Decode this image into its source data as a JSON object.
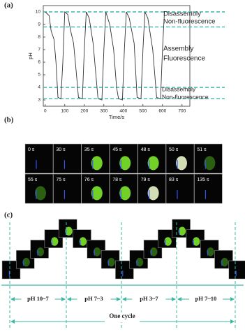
{
  "chart_data": {
    "type": "line",
    "panel_label": "(a)",
    "x_label": "Time/s",
    "y_label": "pH",
    "x": [
      0,
      20,
      30,
      45,
      55,
      65,
      80,
      90,
      100,
      115,
      130,
      145,
      160,
      170,
      190,
      200,
      210,
      225,
      245,
      270,
      290,
      300,
      310,
      330,
      350,
      365,
      375,
      395,
      405,
      415,
      430,
      455,
      470,
      490,
      500,
      510,
      525,
      550,
      570,
      590,
      600,
      610
    ],
    "series": [
      {
        "color": "#333333",
        "values": [
          10,
          9.7,
          8.5,
          7.8,
          6,
          3.2,
          3.1,
          6,
          10,
          9.8,
          8.5,
          7.5,
          5,
          3.2,
          3.1,
          7,
          10,
          9.5,
          7.5,
          3.1,
          3,
          7,
          10,
          9,
          7,
          4,
          3.1,
          3,
          7,
          10,
          9.5,
          7.5,
          3.2,
          3.1,
          7,
          10,
          9.5,
          7,
          3.2,
          3.1,
          7,
          10
        ]
      }
    ],
    "xlim": [
      -10,
      740
    ],
    "xticks": [
      0,
      100,
      200,
      300,
      400,
      500,
      600,
      700
    ],
    "ylim": [
      2.5,
      10.5
    ],
    "yticks": [
      3,
      4,
      5,
      6,
      7,
      8,
      9,
      10
    ],
    "hlines": [
      10,
      8.8,
      4,
      3.1
    ],
    "hline_color": "#3cb9a6",
    "annotations": [
      "Disassembly",
      "Non-fluorescence",
      "Assembly",
      "Fluorescence",
      "Disassembly",
      "Non-fluorescence"
    ]
  },
  "panel_b": {
    "label": "(b)",
    "frames": [
      "0 s",
      "30 s",
      "35 s",
      "45 s",
      "48 s",
      "50 s",
      "51 s",
      "55 s",
      "75 s",
      "76 s",
      "78 s",
      "79 s",
      "83 s",
      "135 s"
    ]
  },
  "panel_c": {
    "label": "(c)",
    "stages": [
      "pH 10~7",
      "pH 7~3",
      "pH 3~7",
      "pH 7~10"
    ],
    "cycle": "One cycle"
  }
}
